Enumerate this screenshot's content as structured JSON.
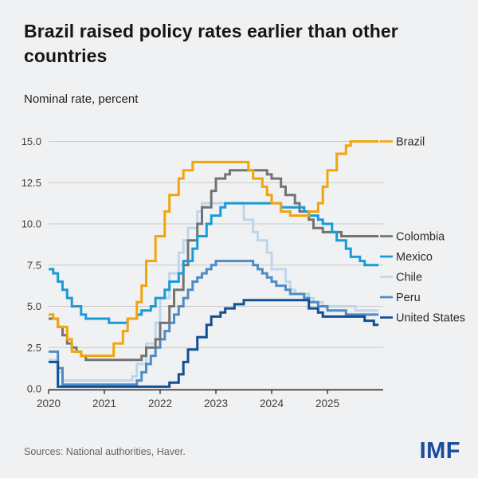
{
  "header": {
    "title_lines": [
      "Brazil raised policy rates earlier than other",
      "countries"
    ],
    "subtitle": "Nominal rate, percent"
  },
  "footer": {
    "source": "Sources: National authorities, Haver.",
    "logo": "IMF"
  },
  "colors": {
    "background": "#f0f1f2",
    "title_text": "#151515",
    "gridline": "#c9c9c9",
    "axis_line": "#2e2e2e",
    "axis_text": "#3f3f3f",
    "legend_text": "#2b2b2b",
    "source_text": "#656565",
    "imf_blue": "#1a4b9e"
  },
  "chart_data": {
    "type": "line",
    "step": true,
    "frequency": "monthly",
    "title": "Brazil raised policy rates earlier than other countries",
    "ylabel": "Nominal rate, percent",
    "xlabel": "",
    "x_start": "2020-01",
    "x_end": "2025-11",
    "xticks": [
      "2020",
      "2021",
      "2022",
      "2023",
      "2024",
      "2025"
    ],
    "yticks": [
      0.0,
      2.5,
      5.0,
      7.5,
      10.0,
      12.5,
      15.0
    ],
    "ylim": [
      0,
      15
    ],
    "grid": true,
    "legend_position": "right",
    "series": [
      {
        "name": "Brazil",
        "color": "#f2a50a",
        "values": [
          4.5,
          4.25,
          3.75,
          3.75,
          3.0,
          2.25,
          2.25,
          2.0,
          2.0,
          2.0,
          2.0,
          2.0,
          2.0,
          2.0,
          2.75,
          2.75,
          3.5,
          4.25,
          4.25,
          5.25,
          6.25,
          7.75,
          7.75,
          9.25,
          9.25,
          10.75,
          11.75,
          11.75,
          12.75,
          13.25,
          13.25,
          13.75,
          13.75,
          13.75,
          13.75,
          13.75,
          13.75,
          13.75,
          13.75,
          13.75,
          13.75,
          13.75,
          13.75,
          13.25,
          12.75,
          12.75,
          12.25,
          11.75,
          11.25,
          11.25,
          10.75,
          10.75,
          10.5,
          10.5,
          10.5,
          10.5,
          10.75,
          10.75,
          11.25,
          12.25,
          13.25,
          13.25,
          14.25,
          14.25,
          14.75,
          15.0,
          15.0,
          15.0,
          15.0,
          15.0,
          15.0
        ]
      },
      {
        "name": "Colombia",
        "color": "#737373",
        "values": [
          4.25,
          4.25,
          3.75,
          3.25,
          2.75,
          2.5,
          2.25,
          2.0,
          1.75,
          1.75,
          1.75,
          1.75,
          1.75,
          1.75,
          1.75,
          1.75,
          1.75,
          1.75,
          1.75,
          1.75,
          2.0,
          2.5,
          2.5,
          3.0,
          4.0,
          4.0,
          5.0,
          6.0,
          6.0,
          7.5,
          9.0,
          9.0,
          10.0,
          11.0,
          11.0,
          12.0,
          12.75,
          12.75,
          13.0,
          13.25,
          13.25,
          13.25,
          13.25,
          13.25,
          13.25,
          13.25,
          13.25,
          13.0,
          12.75,
          12.75,
          12.25,
          11.75,
          11.75,
          11.25,
          10.75,
          10.75,
          10.25,
          9.75,
          9.75,
          9.5,
          9.5,
          9.5,
          9.5,
          9.25,
          9.25,
          9.25,
          9.25,
          9.25,
          9.25,
          9.25,
          9.25
        ]
      },
      {
        "name": "Mexico",
        "color": "#199bd7",
        "values": [
          7.25,
          7.0,
          6.5,
          6.0,
          5.5,
          5.0,
          5.0,
          4.5,
          4.25,
          4.25,
          4.25,
          4.25,
          4.25,
          4.0,
          4.0,
          4.0,
          4.0,
          4.25,
          4.25,
          4.5,
          4.75,
          4.75,
          5.0,
          5.5,
          5.5,
          6.0,
          6.5,
          6.5,
          7.0,
          7.75,
          7.75,
          8.5,
          9.25,
          9.25,
          10.0,
          10.5,
          10.5,
          11.0,
          11.25,
          11.25,
          11.25,
          11.25,
          11.25,
          11.25,
          11.25,
          11.25,
          11.25,
          11.25,
          11.25,
          11.25,
          11.0,
          11.0,
          11.0,
          11.0,
          11.0,
          10.75,
          10.5,
          10.5,
          10.25,
          10.0,
          10.0,
          9.5,
          9.0,
          9.0,
          8.5,
          8.0,
          8.0,
          7.75,
          7.5,
          7.5,
          7.5
        ]
      },
      {
        "name": "Chile",
        "color": "#bed7eb",
        "values": [
          1.75,
          1.75,
          1.0,
          0.5,
          0.5,
          0.5,
          0.5,
          0.5,
          0.5,
          0.5,
          0.5,
          0.5,
          0.5,
          0.5,
          0.5,
          0.5,
          0.5,
          0.5,
          0.75,
          1.5,
          1.5,
          2.75,
          2.75,
          4.0,
          5.5,
          5.5,
          7.0,
          7.0,
          8.25,
          9.0,
          9.75,
          9.75,
          10.75,
          11.25,
          11.25,
          11.25,
          11.25,
          11.25,
          11.25,
          11.25,
          11.25,
          11.25,
          10.25,
          10.25,
          9.5,
          9.0,
          9.0,
          8.25,
          7.25,
          7.25,
          7.25,
          6.5,
          6.0,
          5.75,
          5.75,
          5.75,
          5.5,
          5.25,
          5.25,
          5.0,
          5.0,
          5.0,
          5.0,
          5.0,
          5.0,
          5.0,
          4.75,
          4.75,
          4.75,
          4.75,
          4.75
        ]
      },
      {
        "name": "Peru",
        "color": "#508cc3",
        "values": [
          2.25,
          2.25,
          1.25,
          0.25,
          0.25,
          0.25,
          0.25,
          0.25,
          0.25,
          0.25,
          0.25,
          0.25,
          0.25,
          0.25,
          0.25,
          0.25,
          0.25,
          0.25,
          0.25,
          0.5,
          1.0,
          1.5,
          2.0,
          2.5,
          3.0,
          3.5,
          4.0,
          4.5,
          5.0,
          5.5,
          6.0,
          6.5,
          6.75,
          7.0,
          7.25,
          7.5,
          7.75,
          7.75,
          7.75,
          7.75,
          7.75,
          7.75,
          7.75,
          7.75,
          7.5,
          7.25,
          7.0,
          6.75,
          6.5,
          6.25,
          6.25,
          6.0,
          5.75,
          5.75,
          5.75,
          5.5,
          5.25,
          5.25,
          5.0,
          5.0,
          4.75,
          4.75,
          4.75,
          4.75,
          4.5,
          4.5,
          4.5,
          4.5,
          4.5,
          4.5,
          4.5
        ]
      },
      {
        "name": "United States",
        "color": "#125096",
        "values": [
          1.625,
          1.625,
          0.125,
          0.125,
          0.125,
          0.125,
          0.125,
          0.125,
          0.125,
          0.125,
          0.125,
          0.125,
          0.125,
          0.125,
          0.125,
          0.125,
          0.125,
          0.125,
          0.125,
          0.125,
          0.125,
          0.125,
          0.125,
          0.125,
          0.125,
          0.125,
          0.375,
          0.375,
          0.875,
          1.625,
          2.375,
          2.375,
          3.125,
          3.125,
          3.875,
          4.375,
          4.375,
          4.625,
          4.875,
          4.875,
          5.125,
          5.125,
          5.375,
          5.375,
          5.375,
          5.375,
          5.375,
          5.375,
          5.375,
          5.375,
          5.375,
          5.375,
          5.375,
          5.375,
          5.375,
          5.375,
          4.875,
          4.875,
          4.625,
          4.375,
          4.375,
          4.375,
          4.375,
          4.375,
          4.375,
          4.375,
          4.375,
          4.375,
          4.125,
          4.125,
          3.875
        ]
      }
    ]
  }
}
